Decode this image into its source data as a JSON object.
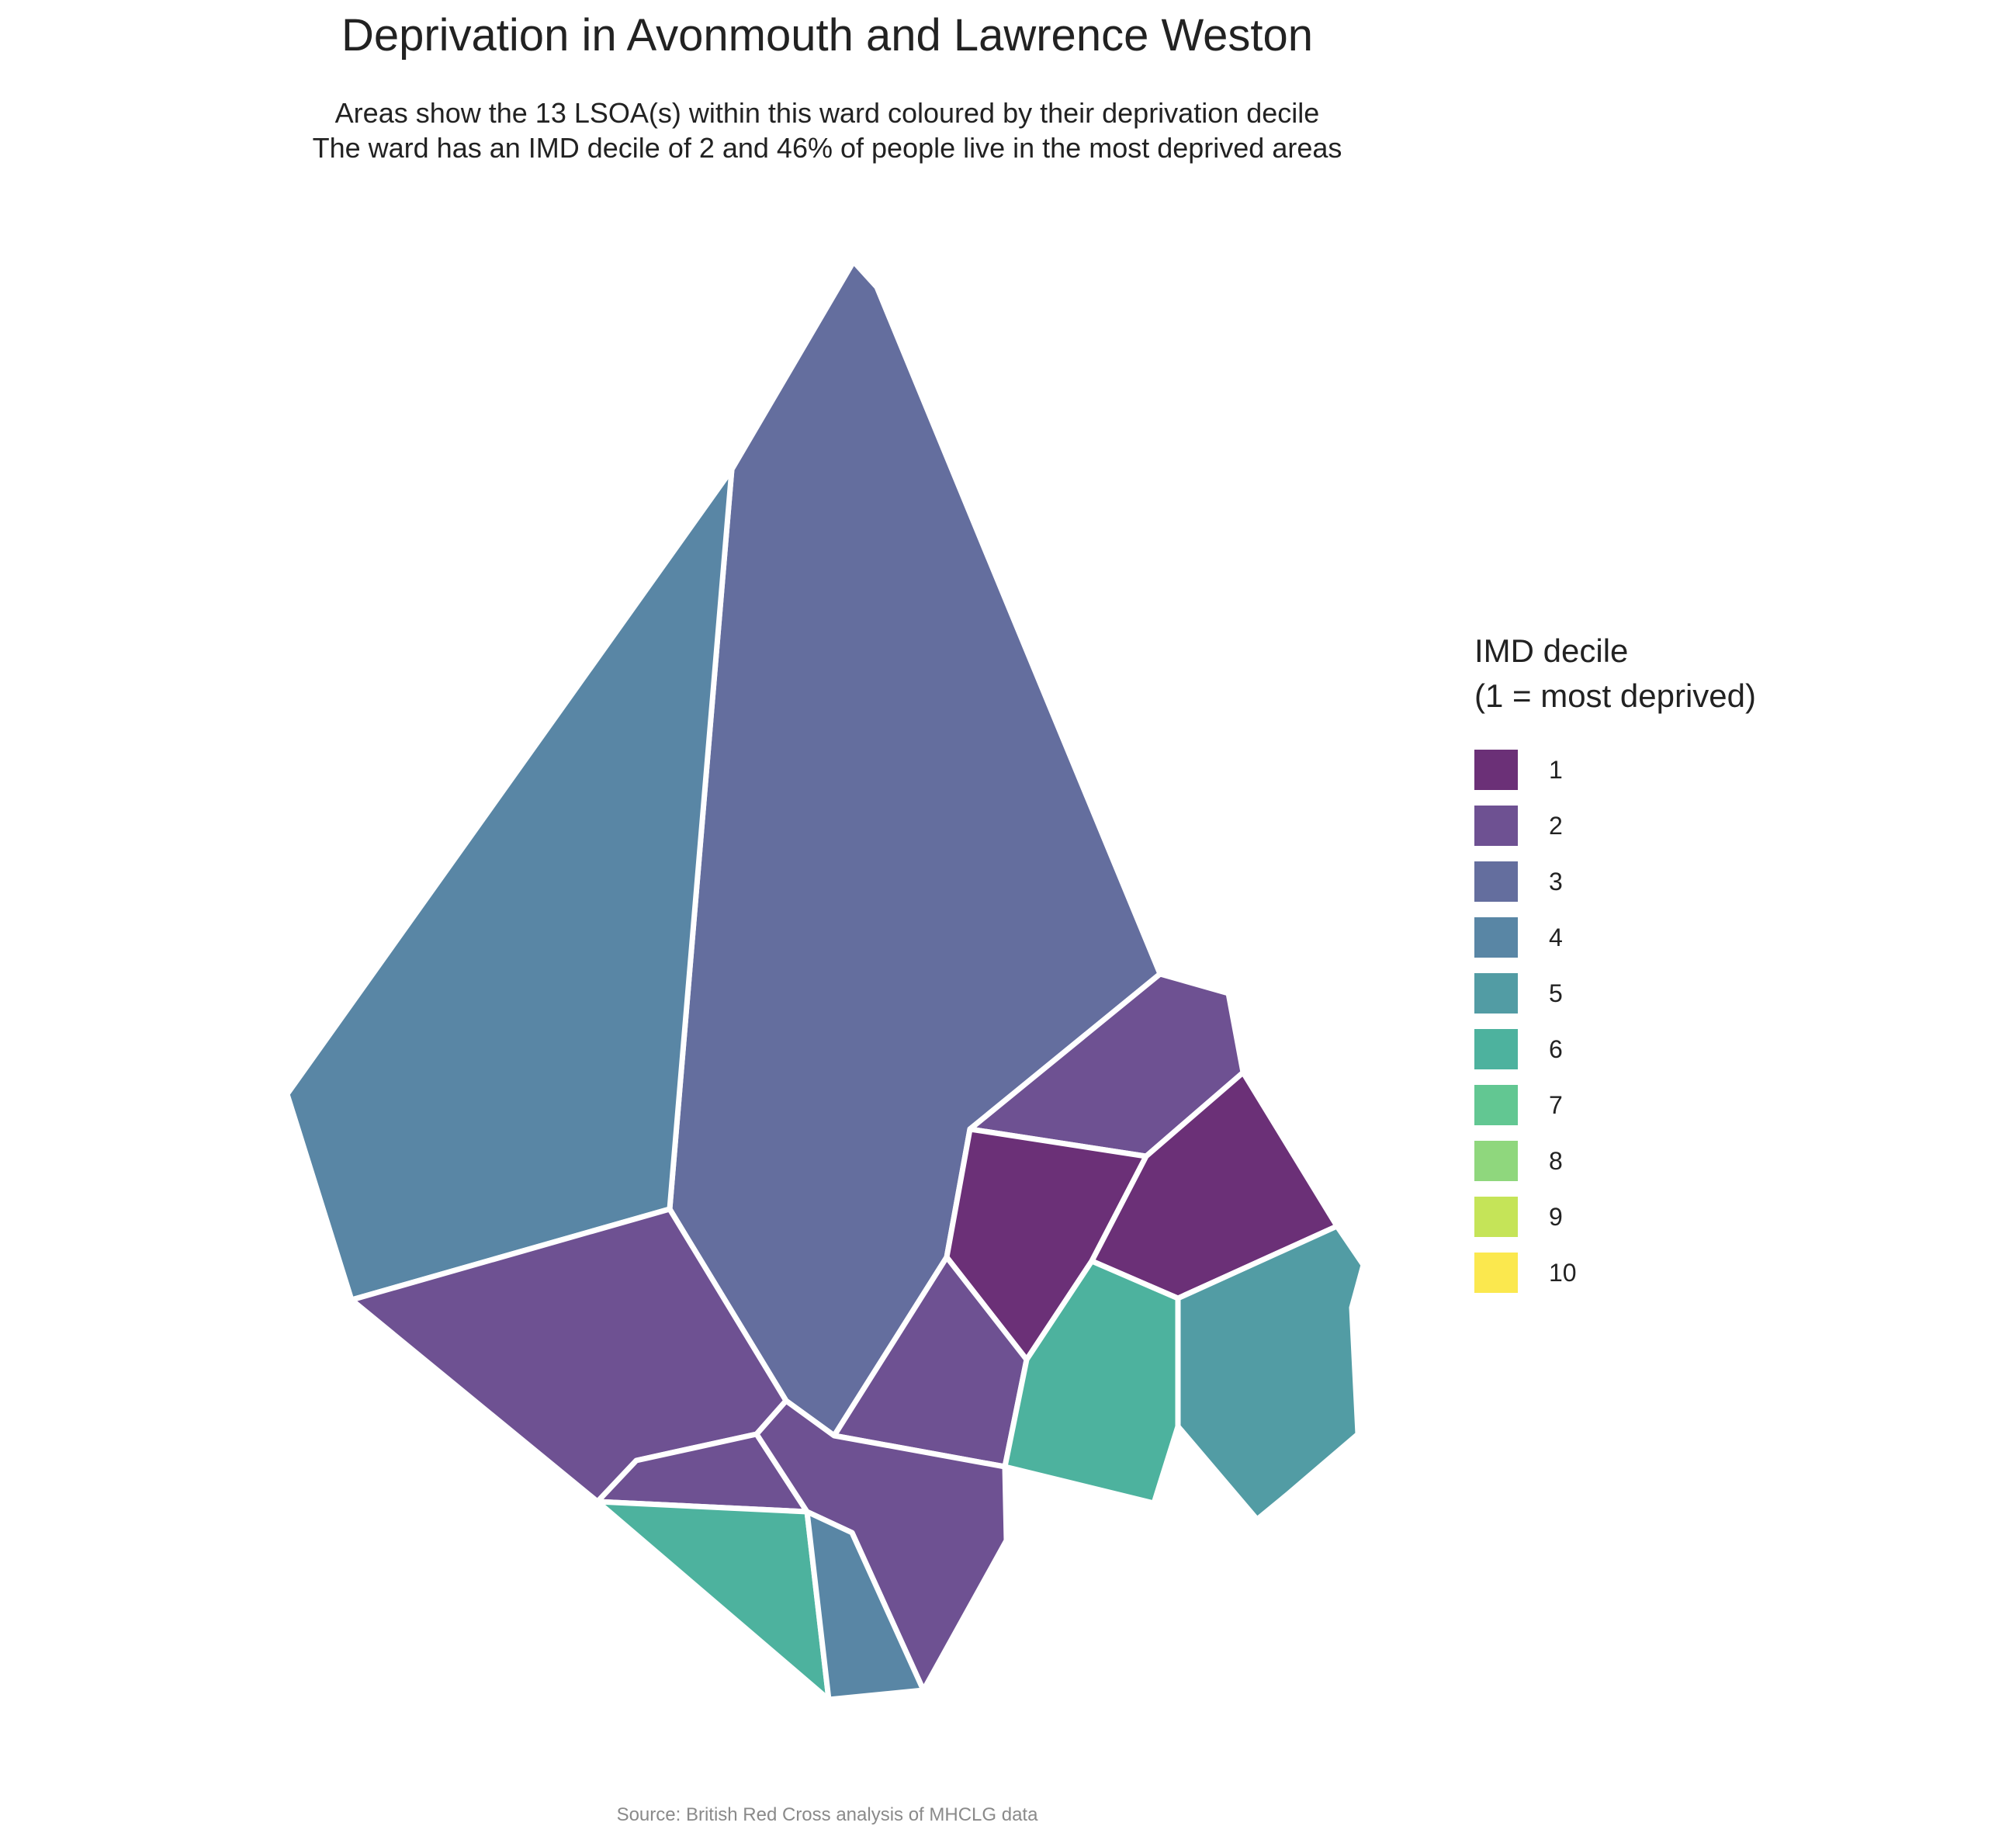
{
  "title": "Deprivation in Avonmouth and Lawrence Weston",
  "subtitle_line1": "Areas show the 13 LSOA(s) within this ward coloured by their deprivation decile",
  "subtitle_line2": "The ward has an IMD decile of 2 and 46% of people live in the most deprived areas",
  "caption": "Source: British Red Cross analysis of MHCLG data",
  "legend": {
    "title_line1": "IMD decile",
    "title_line2": "(1 = most deprived)",
    "items": [
      {
        "label": "1",
        "color": "#6b3077"
      },
      {
        "label": "2",
        "color": "#6e5192"
      },
      {
        "label": "3",
        "color": "#646e9e"
      },
      {
        "label": "4",
        "color": "#5986a5"
      },
      {
        "label": "5",
        "color": "#529ca4"
      },
      {
        "label": "6",
        "color": "#4db29e"
      },
      {
        "label": "7",
        "color": "#62c792"
      },
      {
        "label": "8",
        "color": "#8fd77d"
      },
      {
        "label": "9",
        "color": "#c5e458"
      },
      {
        "label": "10",
        "color": "#fbe84e"
      }
    ]
  },
  "map": {
    "ward": "Avonmouth and Lawrence Weston",
    "ward_imd_decile": 2,
    "lsoa_count": 13,
    "lsoas": [
      {
        "id": "lsoa-north-large",
        "decile": 3
      },
      {
        "id": "lsoa-west-large",
        "decile": 4
      },
      {
        "id": "lsoa-southwest",
        "decile": 2
      },
      {
        "id": "lsoa-east-upper",
        "decile": 2
      },
      {
        "id": "lsoa-east-center",
        "decile": 1
      },
      {
        "id": "lsoa-east-right",
        "decile": 1
      },
      {
        "id": "lsoa-central-south",
        "decile": 2
      },
      {
        "id": "lsoa-south-green",
        "decile": 6
      },
      {
        "id": "lsoa-far-east",
        "decile": 5
      },
      {
        "id": "lsoa-south-strip",
        "decile": 2
      },
      {
        "id": "lsoa-south-center",
        "decile": 2
      },
      {
        "id": "lsoa-southwest-green",
        "decile": 6
      },
      {
        "id": "lsoa-south-tip",
        "decile": 4
      }
    ]
  }
}
